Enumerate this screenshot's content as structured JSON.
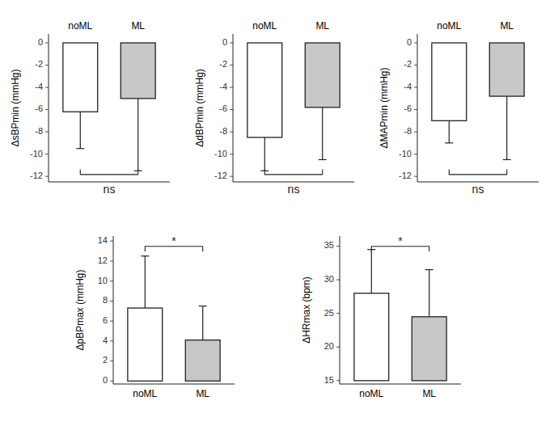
{
  "chart_data": [
    {
      "type": "bar",
      "ylabel": "ΔsBPmin (mmHg)",
      "categories": [
        "noML",
        "ML"
      ],
      "values": [
        -6.2,
        -5.0
      ],
      "base": [
        0,
        0
      ],
      "error_ends": [
        -9.5,
        -11.5
      ],
      "colors": [
        "#ffffff",
        "#c8c8c8"
      ],
      "ylim": [
        -12.5,
        0.8
      ],
      "yticks": [
        0,
        -2,
        -4,
        -6,
        -8,
        -10,
        -12
      ],
      "annotation": "ns"
    },
    {
      "type": "bar",
      "ylabel": "ΔdBPmin (mmHg)",
      "categories": [
        "noML",
        "ML"
      ],
      "values": [
        -8.5,
        -5.8
      ],
      "base": [
        0,
        0
      ],
      "error_ends": [
        -11.5,
        -10.5
      ],
      "colors": [
        "#ffffff",
        "#c8c8c8"
      ],
      "ylim": [
        -12.5,
        0.8
      ],
      "yticks": [
        0,
        -2,
        -4,
        -6,
        -8,
        -10,
        -12
      ],
      "annotation": "ns"
    },
    {
      "type": "bar",
      "ylabel": "ΔMAPmin (mmHg)",
      "categories": [
        "noML",
        "ML"
      ],
      "values": [
        -7.0,
        -4.8
      ],
      "base": [
        0,
        0
      ],
      "error_ends": [
        -9.0,
        -10.5
      ],
      "colors": [
        "#ffffff",
        "#c8c8c8"
      ],
      "ylim": [
        -12.5,
        0.8
      ],
      "yticks": [
        0,
        -2,
        -4,
        -6,
        -8,
        -10,
        -12
      ],
      "annotation": "ns"
    },
    {
      "type": "bar",
      "ylabel": "ΔpBPmax (mmHg)",
      "categories": [
        "noML",
        "ML"
      ],
      "values": [
        7.3,
        4.1
      ],
      "base": [
        0,
        0
      ],
      "error_ends": [
        12.5,
        7.5
      ],
      "colors": [
        "#ffffff",
        "#c8c8c8"
      ],
      "ylim": [
        -0.3,
        14.5
      ],
      "yticks": [
        0,
        2,
        4,
        6,
        8,
        10,
        12,
        14
      ],
      "annotation": "*"
    },
    {
      "type": "bar",
      "ylabel": "ΔHRmax (bpm)",
      "categories": [
        "noML",
        "ML"
      ],
      "values": [
        28.0,
        24.5
      ],
      "base": [
        15,
        15
      ],
      "error_ends": [
        34.5,
        31.5
      ],
      "colors": [
        "#ffffff",
        "#c8c8c8"
      ],
      "ylim": [
        14.5,
        36.5
      ],
      "yticks": [
        15,
        20,
        25,
        30,
        35
      ],
      "annotation": "*"
    }
  ]
}
